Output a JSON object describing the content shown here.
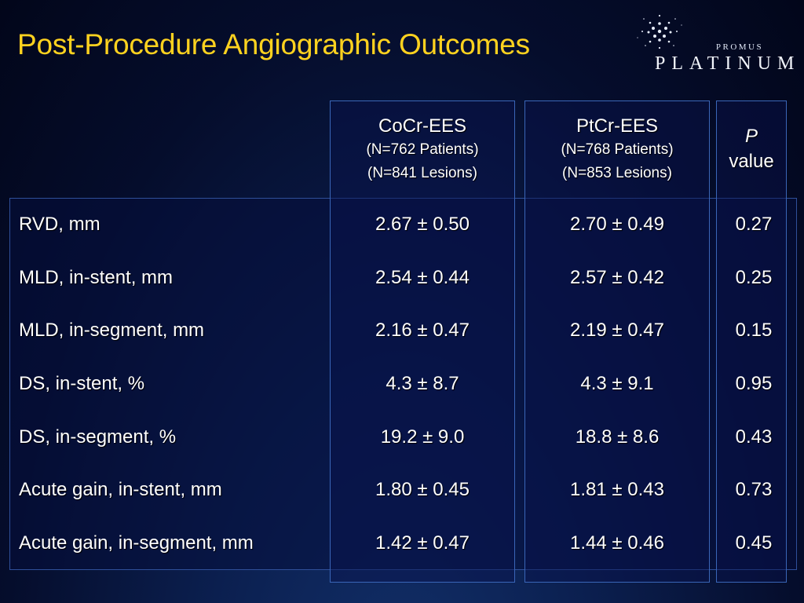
{
  "slide": {
    "title": "Post-Procedure Angiographic Outcomes"
  },
  "logo": {
    "icon": "starburst-icon",
    "top_text": "PROMUS",
    "main_text": "PLATINUM"
  },
  "colors": {
    "title": "#ffd21f",
    "background": "#06112f",
    "frame": "#3a66b8"
  },
  "table": {
    "headers": {
      "cocr": {
        "name": "CoCr-EES",
        "patients": "(N=762 Patients)",
        "lesions": "(N=841 Lesions)"
      },
      "ptcr": {
        "name": "PtCr-EES",
        "patients": "(N=768 Patients)",
        "lesions": "(N=853 Lesions)"
      },
      "p": {
        "italic": "P",
        "word": "value"
      }
    },
    "rows": [
      {
        "label": "RVD, mm",
        "cocr": "2.67 ± 0.50",
        "ptcr": "2.70 ± 0.49",
        "p": "0.27"
      },
      {
        "label": "MLD, in-stent, mm",
        "cocr": "2.54 ± 0.44",
        "ptcr": "2.57 ± 0.42",
        "p": "0.25"
      },
      {
        "label": "MLD, in-segment, mm",
        "cocr": "2.16 ± 0.47",
        "ptcr": "2.19 ± 0.47",
        "p": "0.15"
      },
      {
        "label": "DS, in-stent, %",
        "cocr": "4.3 ± 8.7",
        "ptcr": "4.3 ± 9.1",
        "p": "0.95"
      },
      {
        "label": "DS, in-segment, %",
        "cocr": "19.2 ± 9.0",
        "ptcr": "18.8 ± 8.6",
        "p": "0.43"
      },
      {
        "label": "Acute gain, in-stent, mm",
        "cocr": "1.80 ± 0.45",
        "ptcr": "1.81 ± 0.43",
        "p": "0.73"
      },
      {
        "label": "Acute gain, in-segment, mm",
        "cocr": "1.42 ± 0.47",
        "ptcr": "1.44 ± 0.46",
        "p": "0.45"
      }
    ]
  }
}
